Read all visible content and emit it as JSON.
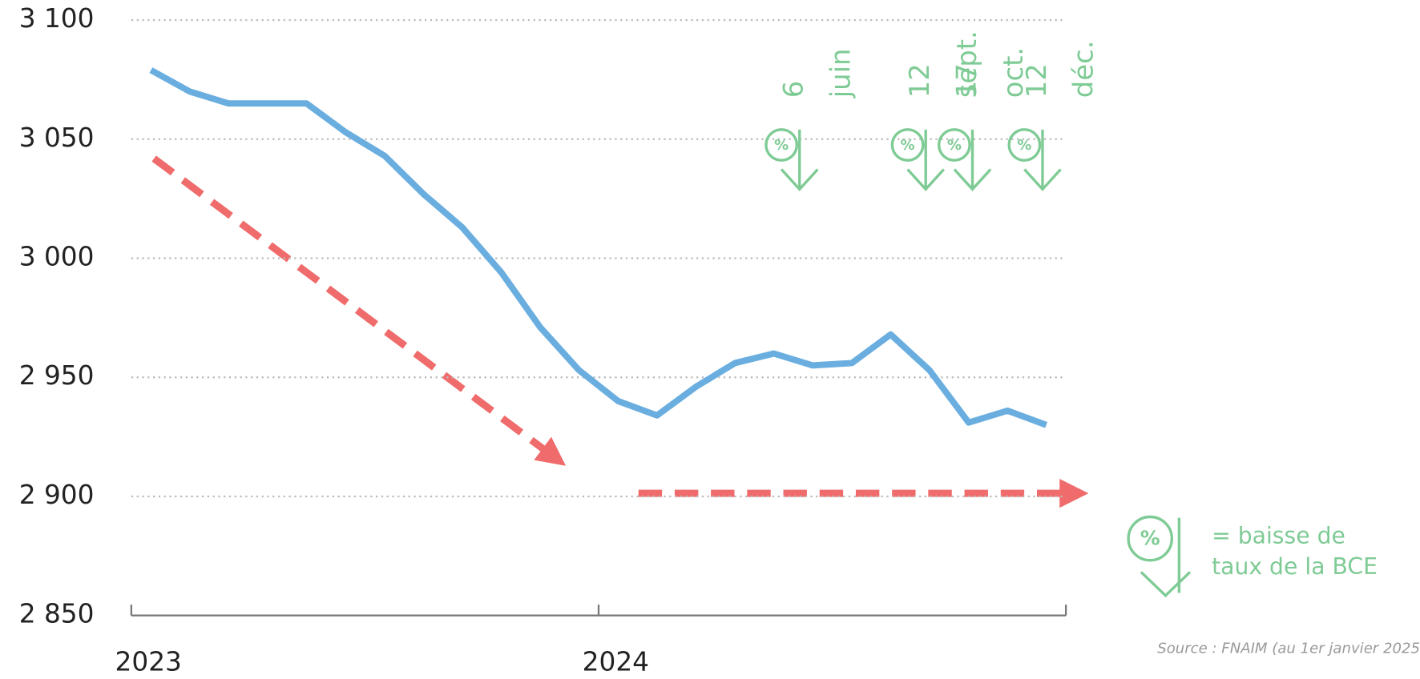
{
  "chart_data": {
    "type": "line",
    "x": [
      2023.042,
      2023.125,
      2023.208,
      2023.292,
      2023.375,
      2023.458,
      2023.542,
      2023.625,
      2023.708,
      2023.792,
      2023.875,
      2023.958,
      2024.042,
      2024.125,
      2024.208,
      2024.292,
      2024.375,
      2024.458,
      2024.542,
      2024.625,
      2024.708,
      2024.792,
      2024.875,
      2024.958
    ],
    "series": [
      {
        "name": null,
        "color": "#6aaee0",
        "values": [
          3079,
          3070,
          3065,
          3065,
          3065,
          3053,
          3043,
          3027,
          3013,
          2994,
          2971,
          2953,
          2940,
          2934,
          2946,
          2956,
          2960,
          2955,
          2956,
          2968,
          2953,
          2931,
          2936,
          2930
        ]
      }
    ],
    "xlim": [
      2023,
      2025
    ],
    "xticks": [
      2023,
      2024
    ],
    "ylim": [
      2850,
      3100
    ],
    "yticks": [
      {
        "value": 2850,
        "label": "2 850"
      },
      {
        "value": 2900,
        "label": "2 900"
      },
      {
        "value": 2950,
        "label": "2 950"
      },
      {
        "value": 3000,
        "label": "3 000"
      },
      {
        "value": 3050,
        "label": "3 050"
      },
      {
        "value": 3100,
        "label": "3 100"
      }
    ],
    "grid": true,
    "annotations": [
      {
        "x": 2024.43,
        "text": [
          "6",
          "juin"
        ]
      },
      {
        "x": 2024.7,
        "text": [
          "12",
          "sept."
        ]
      },
      {
        "x": 2024.8,
        "text": [
          "17",
          "oct."
        ]
      },
      {
        "x": 2024.95,
        "text": [
          "12",
          "déc."
        ]
      }
    ],
    "legend_text": [
      "= baisse de",
      "taux de la BCE"
    ],
    "source": "Source : FNAIM (au 1er janvier 2025"
  }
}
